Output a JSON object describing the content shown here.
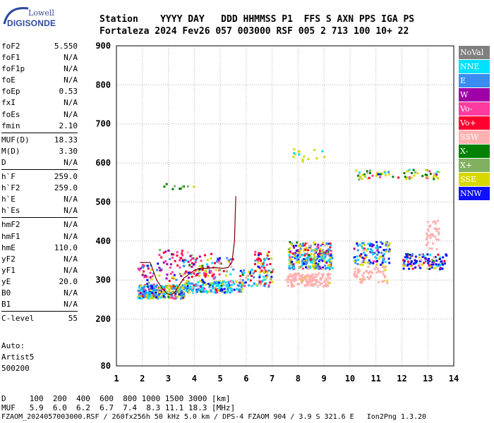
{
  "logo": {
    "top": "Lowell",
    "main": "DIGISONDE"
  },
  "header": {
    "line1": "Station    YYYY DAY   DDD HHMMSS P1  FFS S AXN PPS IGA PS",
    "line2": "Fortaleza 2024 Fev26 057 003000 RSF 005 2 713 100 10+ 22"
  },
  "params": [
    [
      [
        "foF2",
        "5.550"
      ],
      [
        "foF1",
        "N/A"
      ],
      [
        "foF1p",
        "N/A"
      ],
      [
        "foE",
        "N/A"
      ],
      [
        "foEp",
        "0.53"
      ],
      [
        "fxI",
        "N/A"
      ],
      [
        "foEs",
        "N/A"
      ],
      [
        "fmin",
        "2.10"
      ]
    ],
    [
      [
        "MUF(D)",
        "18.33"
      ],
      [
        "M(D)",
        "3.30"
      ],
      [
        "D",
        "N/A"
      ]
    ],
    [
      [
        "h`F",
        "259.0"
      ],
      [
        "h`F2",
        "259.0"
      ],
      [
        "h`E",
        "N/A"
      ],
      [
        "h`Es",
        "N/A"
      ]
    ],
    [
      [
        "hmF2",
        "N/A"
      ],
      [
        "hmF1",
        "N/A"
      ],
      [
        "hmE",
        "110.0"
      ],
      [
        "yF2",
        "N/A"
      ],
      [
        "yF1",
        "N/A"
      ],
      [
        "yE",
        "20.0"
      ],
      [
        "B0",
        "N/A"
      ],
      [
        "B1",
        "N/A"
      ]
    ],
    [
      [
        "C-level",
        "55"
      ]
    ]
  ],
  "auto": {
    "l1": "Auto:",
    "l2": "Artist5",
    "l3": "500200"
  },
  "legend": [
    {
      "label": "NoVal",
      "color": "#808080"
    },
    {
      "label": "NNE",
      "color": "#00e0ff"
    },
    {
      "label": "E",
      "color": "#3a8cf0"
    },
    {
      "label": "W",
      "color": "#a000a8"
    },
    {
      "label": "Vo-",
      "color": "#ff3aa0"
    },
    {
      "label": "Vo+",
      "color": "#ff0030"
    },
    {
      "label": "SSW",
      "color": "#ffb0b0"
    },
    {
      "label": "X-",
      "color": "#008000"
    },
    {
      "label": "X+",
      "color": "#80b060"
    },
    {
      "label": "SSE",
      "color": "#d8d800"
    },
    {
      "label": "NNW",
      "color": "#1010ff"
    }
  ],
  "footer": {
    "l1": "D     100  200  400  600  800 1000 1500 3000 [km]",
    "l2": "MUF   5.9  6.0  6.2  6.7  7.4  8.3 11.1 18.3 [MHz]",
    "l3": "FZAOM_2024057003000.RSF / 260fx256h 50 kHz 5.0 km / DPS-4 FZAOM 904 / 3.9 S 321.6 E   Ion2Png 1.3.20"
  },
  "chart_data": {
    "type": "scatter",
    "xlim": [
      1,
      14
    ],
    "ylim": [
      80,
      900
    ],
    "x_ticks": [
      "1",
      "2",
      "3",
      "4",
      "5",
      "6",
      "7",
      "8",
      "9",
      "10",
      "11",
      "12",
      "13",
      "14"
    ],
    "y_ticks": [
      "80",
      "200",
      "300",
      "400",
      "500",
      "600",
      "700",
      "800",
      "900"
    ],
    "grid": "dotted",
    "trace": {
      "color": "#800000",
      "x": [
        1.9,
        2.3,
        2.55,
        2.75,
        2.95,
        3.1,
        3.25,
        3.4,
        3.6,
        3.8,
        4.0,
        4.2,
        4.5,
        4.8,
        5.1,
        5.3,
        5.45,
        5.55,
        5.6
      ],
      "y": [
        345,
        345,
        300,
        280,
        265,
        262,
        268,
        285,
        305,
        315,
        325,
        330,
        330,
        332,
        330,
        332,
        345,
        400,
        515
      ]
    }
  }
}
